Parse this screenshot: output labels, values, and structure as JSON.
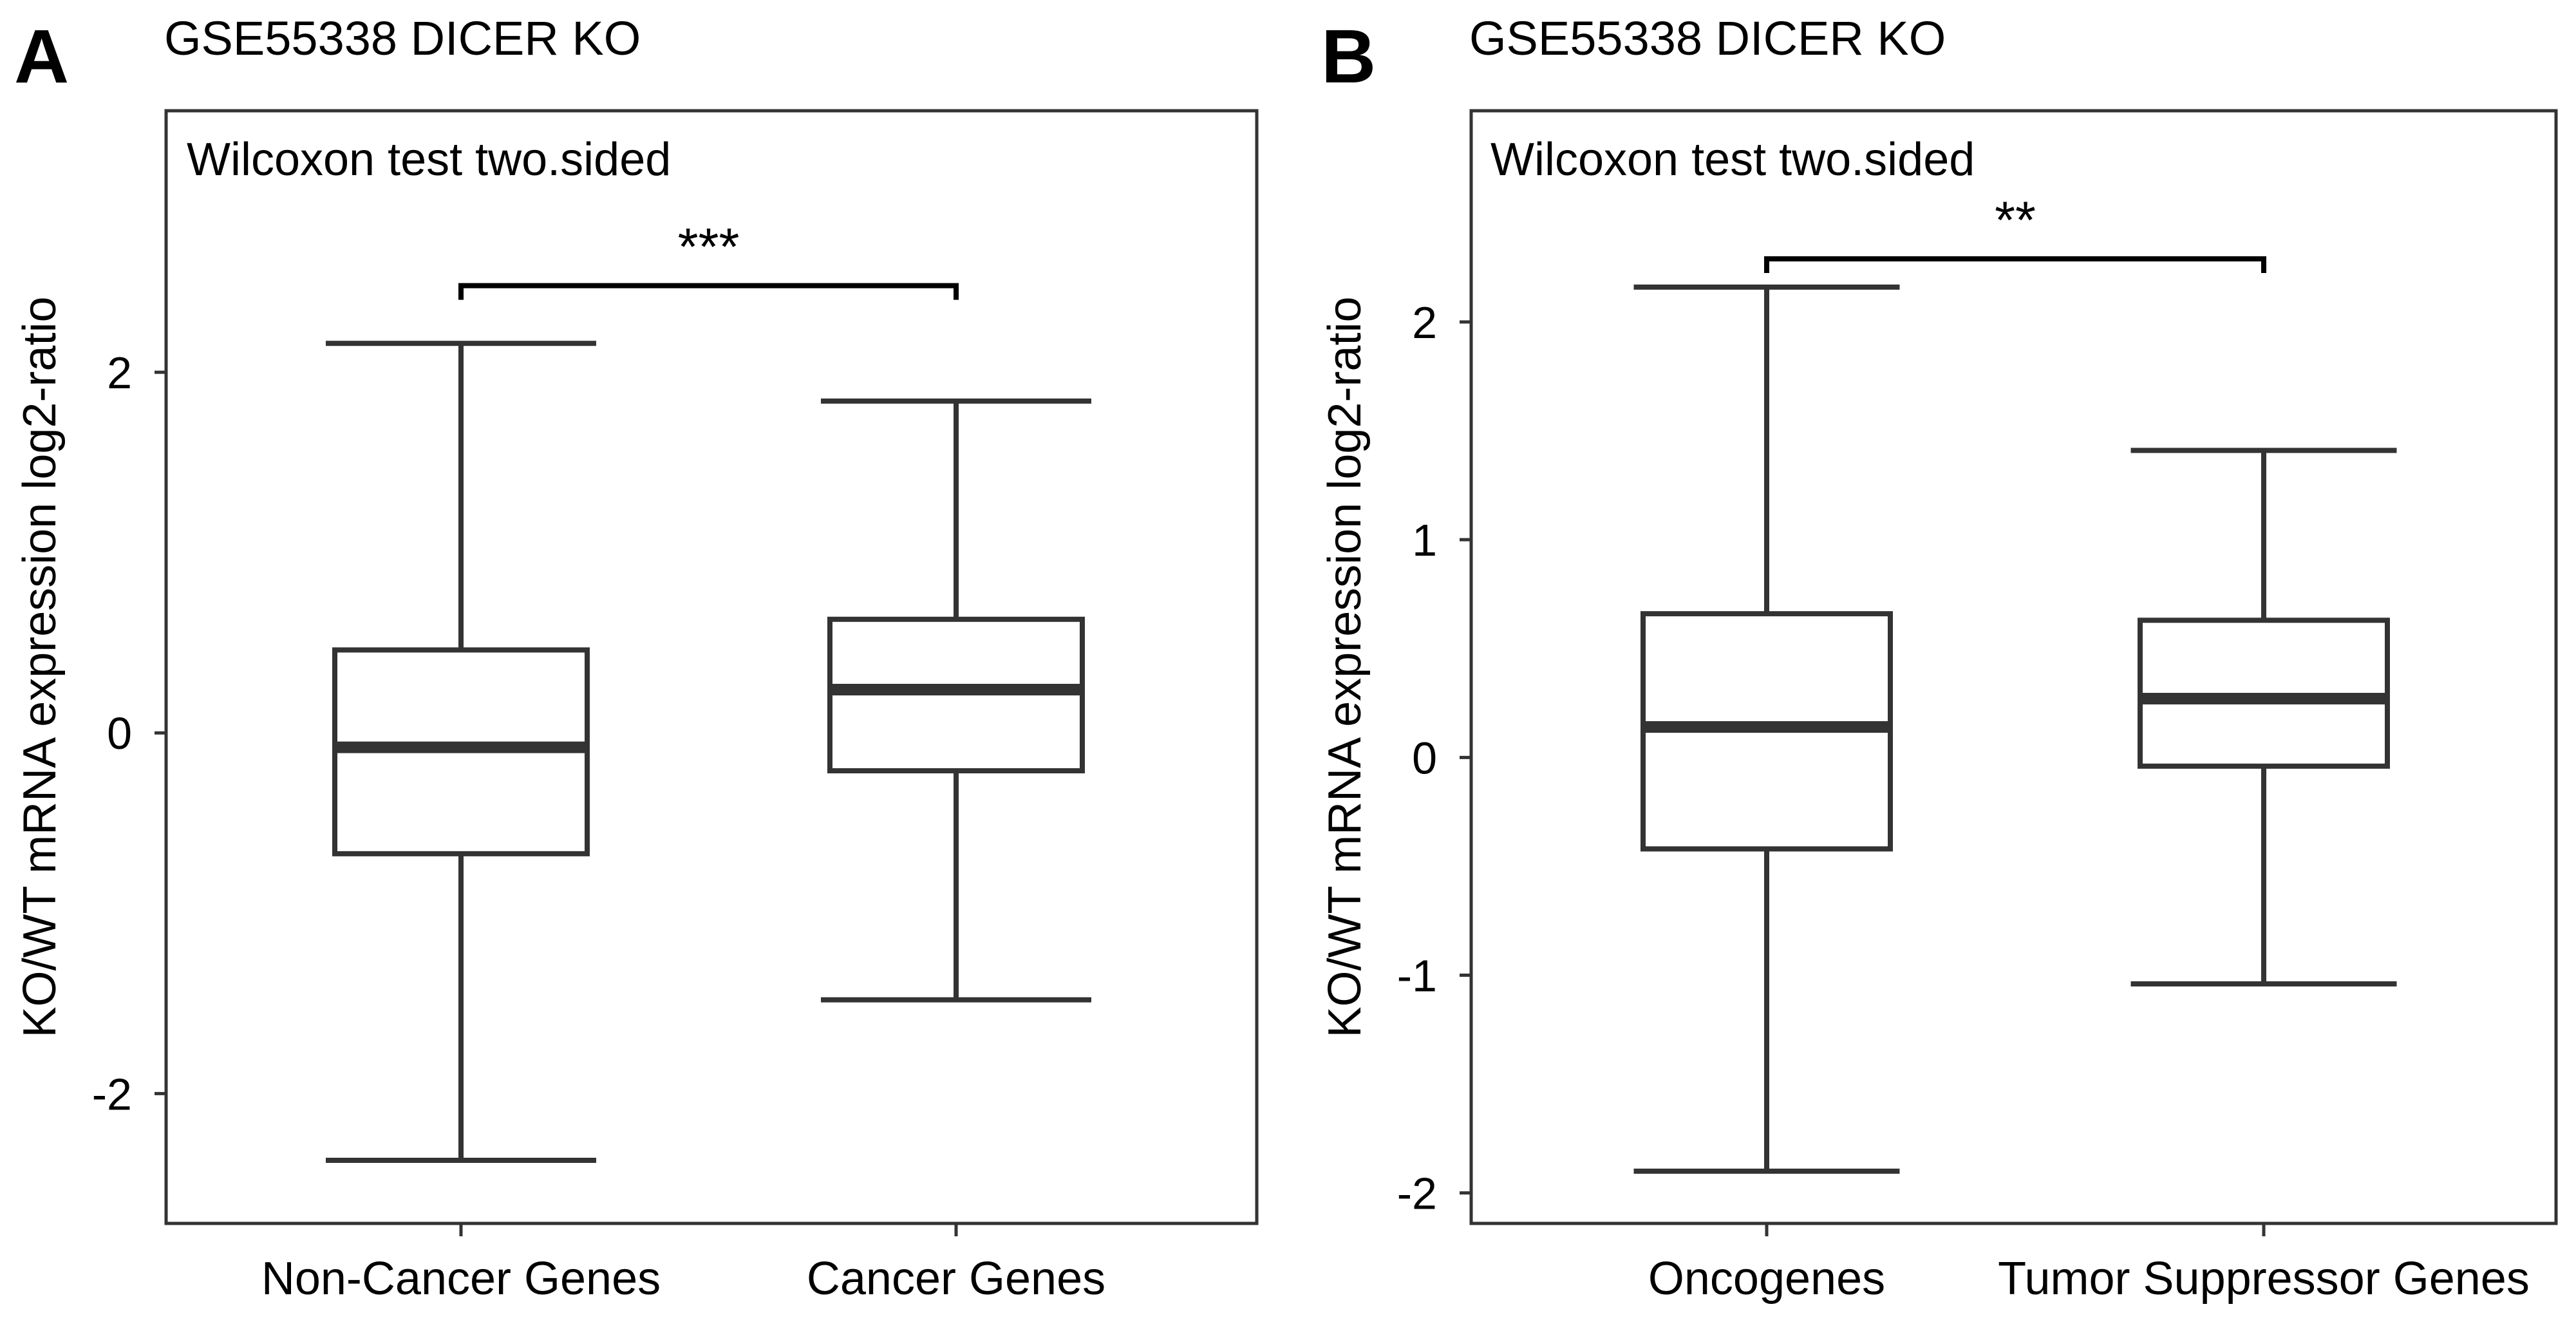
{
  "colors": {
    "line": "#333333",
    "text": "#000000",
    "background": "#ffffff"
  },
  "chart_data": [
    {
      "type": "boxplot",
      "panel_label": "A",
      "title": "GSE55338 DICER KO",
      "annotation": "Wilcoxon test two.sided",
      "significance": "***",
      "xlabel": "",
      "ylabel": "KO/WT mRNA expression log2-ratio",
      "ylim": [
        -2.72,
        3.45
      ],
      "yticks": [
        -2,
        0,
        2
      ],
      "ytick_labels": [
        "-2",
        "0",
        "2"
      ],
      "categories": [
        "Non-Cancer Genes",
        "Cancer Genes"
      ],
      "boxes": [
        {
          "whisker_low": -2.37,
          "q1": -0.67,
          "median": -0.08,
          "q3": 0.46,
          "whisker_high": 2.16
        },
        {
          "whisker_low": -1.48,
          "q1": -0.21,
          "median": 0.24,
          "q3": 0.63,
          "whisker_high": 1.84
        }
      ],
      "bracket_y": 2.48
    },
    {
      "type": "boxplot",
      "panel_label": "B",
      "title": "GSE55338 DICER KO",
      "annotation": "Wilcoxon test two.sided",
      "significance": "**",
      "xlabel": "",
      "ylabel": "KO/WT mRNA expression log2-ratio",
      "ylim": [
        -2.14,
        2.97
      ],
      "yticks": [
        -2,
        -1,
        0,
        1,
        2
      ],
      "ytick_labels": [
        "-2",
        "-1",
        "0",
        "1",
        "2"
      ],
      "categories": [
        "Oncogenes",
        "Tumor Suppressor Genes"
      ],
      "boxes": [
        {
          "whisker_low": -1.9,
          "q1": -0.42,
          "median": 0.14,
          "q3": 0.66,
          "whisker_high": 2.16
        },
        {
          "whisker_low": -1.04,
          "q1": -0.04,
          "median": 0.27,
          "q3": 0.63,
          "whisker_high": 1.41
        }
      ],
      "bracket_y": 2.29
    }
  ]
}
